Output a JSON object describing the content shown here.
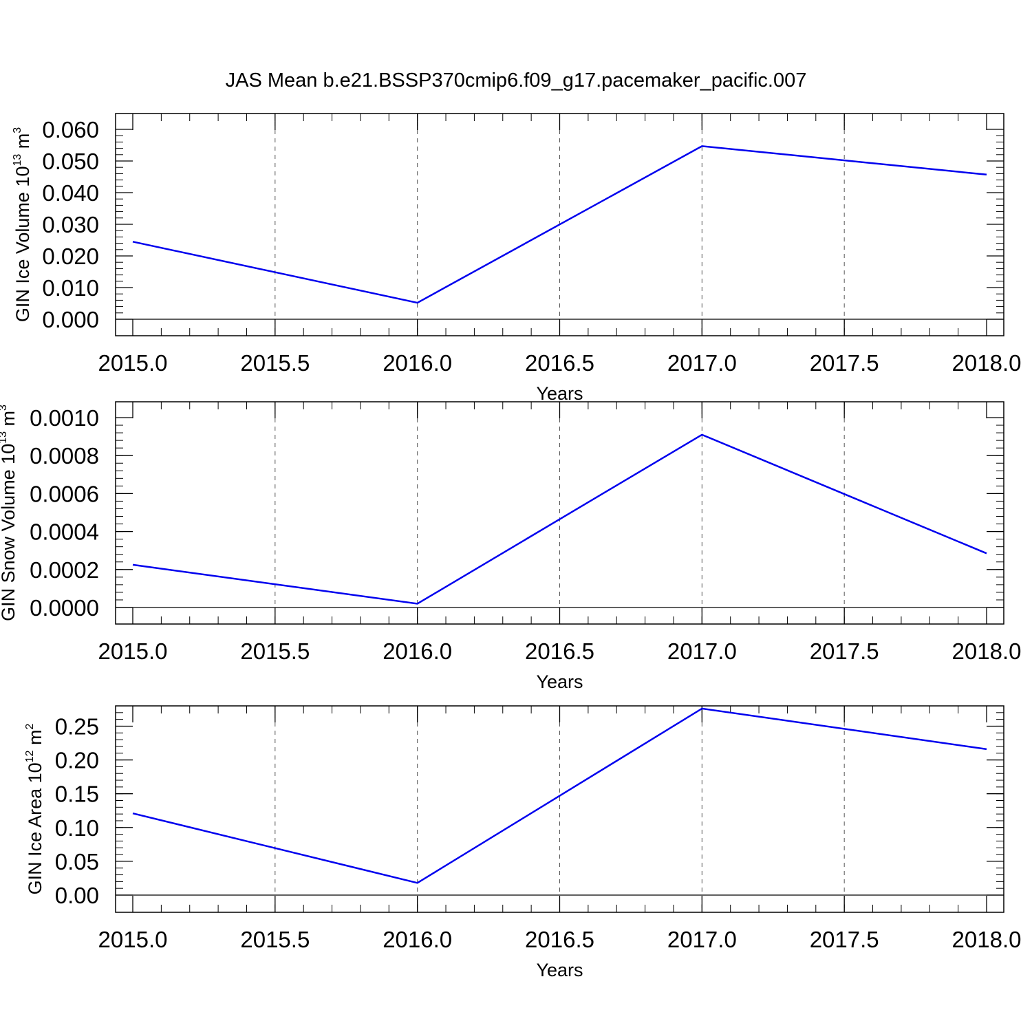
{
  "figure": {
    "title": "JAS Mean b.e21.BSSP370cmip6.f09_g17.pacemaker_pacific.007"
  },
  "chart_data": [
    {
      "type": "line",
      "x": [
        2015,
        2016,
        2017,
        2018
      ],
      "series": [
        {
          "values": [
            0.0245,
            0.0052,
            0.0547,
            0.0457
          ]
        }
      ],
      "xlabel": "Years",
      "ylabel": "GIN Ice Volume 10",
      "ylabel_exp": "13",
      "ylabel_unit": " m",
      "ylabel_unit_exp": "3",
      "xlim": [
        2015,
        2018
      ],
      "ylim": [
        0,
        0.06
      ],
      "xticks": [
        2015.0,
        2015.5,
        2016.0,
        2016.5,
        2017.0,
        2017.5,
        2018.0
      ],
      "xtick_labels": [
        "2015.0",
        "2015.5",
        "2016.0",
        "2016.5",
        "2017.0",
        "2017.5",
        "2018.0"
      ],
      "yticks": [
        0,
        0.01,
        0.02,
        0.03,
        0.04,
        0.05,
        0.06
      ],
      "ytick_labels": [
        "0.000",
        "0.010",
        "0.020",
        "0.030",
        "0.040",
        "0.050",
        "0.060"
      ],
      "grid": "vertical dashed at x ticks",
      "color": "#0000ee"
    },
    {
      "type": "line",
      "x": [
        2015,
        2016,
        2017,
        2018
      ],
      "series": [
        {
          "values": [
            0.000225,
            2e-05,
            0.00091,
            0.000285
          ]
        }
      ],
      "xlabel": "Years",
      "ylabel": "GIN Snow Volume 10",
      "ylabel_exp": "13",
      "ylabel_unit": " m",
      "ylabel_unit_exp": "3",
      "xlim": [
        2015,
        2018
      ],
      "ylim": [
        0,
        0.001
      ],
      "xticks": [
        2015.0,
        2015.5,
        2016.0,
        2016.5,
        2017.0,
        2017.5,
        2018.0
      ],
      "xtick_labels": [
        "2015.0",
        "2015.5",
        "2016.0",
        "2016.5",
        "2017.0",
        "2017.5",
        "2018.0"
      ],
      "yticks": [
        0,
        0.0002,
        0.0004,
        0.0006,
        0.0008,
        0.001
      ],
      "ytick_labels": [
        "0.0000",
        "0.0002",
        "0.0004",
        "0.0006",
        "0.0008",
        "0.0010"
      ],
      "grid": "vertical dashed at x ticks",
      "color": "#0000ee"
    },
    {
      "type": "line",
      "x": [
        2015,
        2016,
        2017,
        2018
      ],
      "series": [
        {
          "values": [
            0.121,
            0.018,
            0.276,
            0.216
          ]
        }
      ],
      "xlabel": "Years",
      "ylabel": "GIN Ice Area 10",
      "ylabel_exp": "12",
      "ylabel_unit": " m",
      "ylabel_unit_exp": "2",
      "xlim": [
        2015,
        2018
      ],
      "ylim": [
        0,
        0.28
      ],
      "xticks": [
        2015.0,
        2015.5,
        2016.0,
        2016.5,
        2017.0,
        2017.5,
        2018.0
      ],
      "xtick_labels": [
        "2015.0",
        "2015.5",
        "2016.0",
        "2016.5",
        "2017.0",
        "2017.5",
        "2018.0"
      ],
      "yticks": [
        0,
        0.05,
        0.1,
        0.15,
        0.2,
        0.25
      ],
      "ytick_labels": [
        "0.00",
        "0.05",
        "0.10",
        "0.15",
        "0.20",
        "0.25"
      ],
      "grid": "vertical dashed at x ticks",
      "color": "#0000ee"
    }
  ]
}
